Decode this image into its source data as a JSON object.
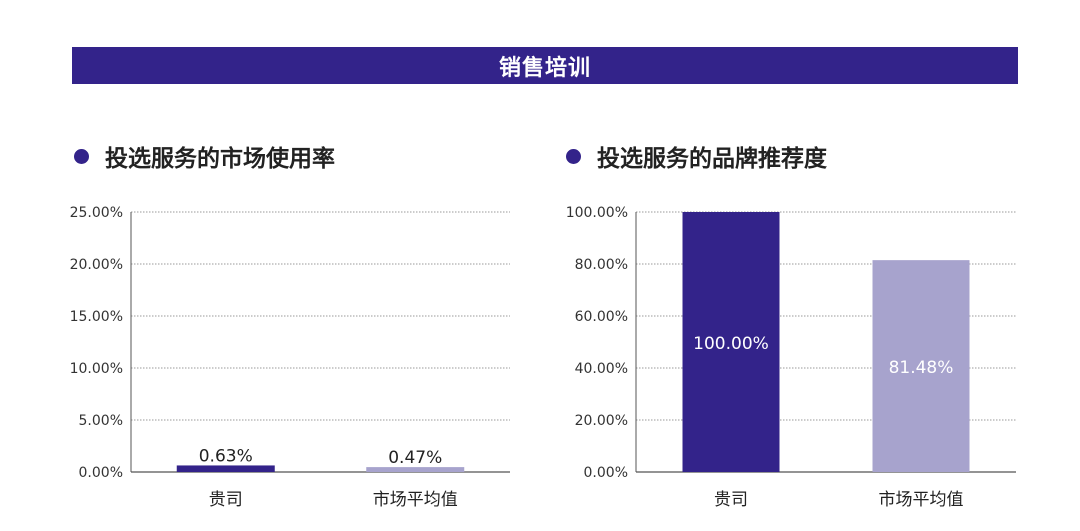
{
  "colors": {
    "primary": "#33238a",
    "secondary": "#a7a3cd",
    "grid": "#9a9a9a",
    "axis": "#555555"
  },
  "banner": {
    "title": "销售培训"
  },
  "chart_data": [
    {
      "type": "bar",
      "title": "投选服务的市场使用率",
      "categories": [
        "贵司",
        "市场平均值"
      ],
      "values": [
        0.63,
        0.47
      ],
      "value_labels": [
        "0.63%",
        "0.47%"
      ],
      "ylim": [
        0,
        25
      ],
      "yticks": [
        "0.00%",
        "5.00%",
        "10.00%",
        "15.00%",
        "20.00%",
        "25.00%"
      ],
      "grid": true,
      "bar_colors": [
        "#33238a",
        "#a7a3cd"
      ],
      "label_position": "above"
    },
    {
      "type": "bar",
      "title": "投选服务的品牌推荐度",
      "categories": [
        "贵司",
        "市场平均值"
      ],
      "values": [
        100.0,
        81.48
      ],
      "value_labels": [
        "100.00%",
        "81.48%"
      ],
      "ylim": [
        0,
        100
      ],
      "yticks": [
        "0.00%",
        "20.00%",
        "40.00%",
        "60.00%",
        "80.00%",
        "100.00%"
      ],
      "grid": true,
      "bar_colors": [
        "#33238a",
        "#a7a3cd"
      ],
      "label_position": "inside"
    }
  ]
}
